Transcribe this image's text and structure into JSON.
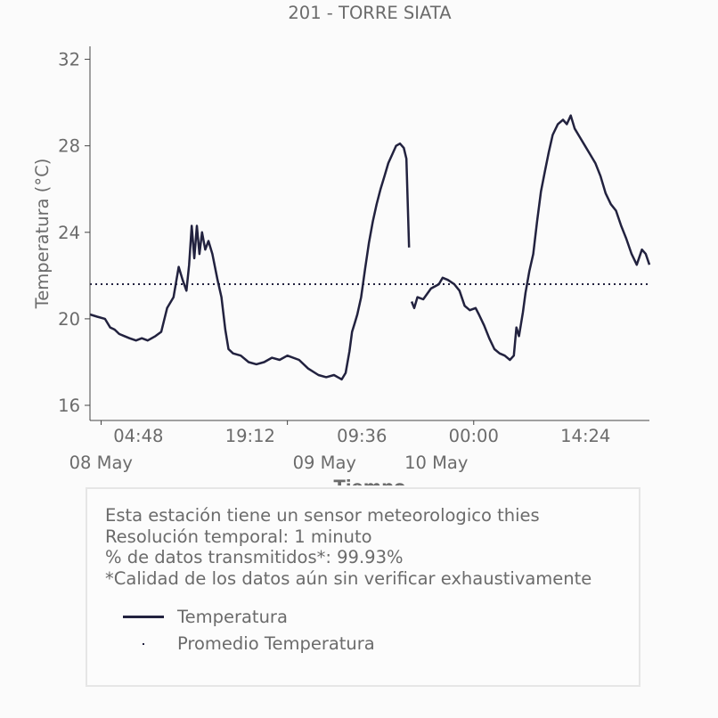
{
  "chart_data": {
    "type": "line",
    "title": "201 - TORRE SIATA",
    "xlabel": "Tiempo",
    "ylabel": "Temperatura (°C)",
    "ylim": [
      15.3,
      32.6
    ],
    "y_ticks": [
      16,
      20,
      24,
      28,
      32
    ],
    "x_range": [
      "2020-05-07T22:34",
      "2020-05-10T22:38"
    ],
    "x_ticks": [
      {
        "time": "2020-05-08T04:48",
        "label": "04:48",
        "date_label": "08 May"
      },
      {
        "time": "2020-05-08T19:12",
        "label": "19:12",
        "date_label": ""
      },
      {
        "time": "2020-05-09T09:36",
        "label": "09:36",
        "date_label": "09 May"
      },
      {
        "time": "2020-05-10T00:00",
        "label": "00:00",
        "date_label": "10 May"
      },
      {
        "time": "2020-05-10T14:24",
        "label": "14:24",
        "date_label": ""
      }
    ],
    "x_minor_ticks": [
      "2020-05-08T00:00",
      "2020-05-09T00:00",
      "2020-05-10T00:00"
    ],
    "grid": false,
    "series": [
      {
        "name": "Temperatura",
        "color": "#22223f",
        "style": "solid",
        "segments": [
          [
            [
              "2020-05-07T22:34",
              20.2
            ],
            [
              "2020-05-07T23:30",
              20.1
            ],
            [
              "2020-05-08T00:30",
              20.0
            ],
            [
              "2020-05-08T01:10",
              19.6
            ],
            [
              "2020-05-08T01:45",
              19.5
            ],
            [
              "2020-05-08T02:20",
              19.3
            ],
            [
              "2020-05-08T03:00",
              19.2
            ],
            [
              "2020-05-08T03:40",
              19.1
            ],
            [
              "2020-05-08T04:30",
              19.0
            ],
            [
              "2020-05-08T05:15",
              19.1
            ],
            [
              "2020-05-08T06:00",
              19.0
            ],
            [
              "2020-05-08T07:00",
              19.2
            ],
            [
              "2020-05-08T07:45",
              19.4
            ],
            [
              "2020-05-08T08:30",
              20.5
            ],
            [
              "2020-05-08T09:20",
              21.0
            ],
            [
              "2020-05-08T10:00",
              22.4
            ],
            [
              "2020-05-08T10:30",
              21.8
            ],
            [
              "2020-05-08T11:00",
              21.3
            ],
            [
              "2020-05-08T11:20",
              22.5
            ],
            [
              "2020-05-08T11:40",
              24.3
            ],
            [
              "2020-05-08T12:00",
              22.8
            ],
            [
              "2020-05-08T12:20",
              24.3
            ],
            [
              "2020-05-08T12:40",
              23.0
            ],
            [
              "2020-05-08T13:00",
              24.0
            ],
            [
              "2020-05-08T13:25",
              23.2
            ],
            [
              "2020-05-08T13:50",
              23.6
            ],
            [
              "2020-05-08T14:20",
              23.0
            ],
            [
              "2020-05-08T15:00",
              21.8
            ],
            [
              "2020-05-08T15:30",
              21.0
            ],
            [
              "2020-05-08T16:00",
              19.5
            ],
            [
              "2020-05-08T16:25",
              18.6
            ],
            [
              "2020-05-08T17:00",
              18.4
            ],
            [
              "2020-05-08T18:00",
              18.3
            ],
            [
              "2020-05-08T19:00",
              18.0
            ],
            [
              "2020-05-08T20:00",
              17.9
            ],
            [
              "2020-05-08T21:00",
              18.0
            ],
            [
              "2020-05-08T22:00",
              18.2
            ],
            [
              "2020-05-08T23:00",
              18.1
            ],
            [
              "2020-05-09T00:00",
              18.3
            ],
            [
              "2020-05-09T01:30",
              18.1
            ],
            [
              "2020-05-09T02:40",
              17.7
            ],
            [
              "2020-05-09T04:00",
              17.4
            ],
            [
              "2020-05-09T05:00",
              17.3
            ],
            [
              "2020-05-09T06:00",
              17.4
            ],
            [
              "2020-05-09T07:00",
              17.2
            ],
            [
              "2020-05-09T07:30",
              17.5
            ],
            [
              "2020-05-09T08:00",
              18.5
            ],
            [
              "2020-05-09T08:20",
              19.4
            ],
            [
              "2020-05-09T08:40",
              19.8
            ],
            [
              "2020-05-09T09:00",
              20.2
            ],
            [
              "2020-05-09T09:30",
              21.0
            ],
            [
              "2020-05-09T10:00",
              22.3
            ],
            [
              "2020-05-09T10:30",
              23.5
            ],
            [
              "2020-05-09T11:00",
              24.5
            ],
            [
              "2020-05-09T11:30",
              25.3
            ],
            [
              "2020-05-09T12:00",
              26.0
            ],
            [
              "2020-05-09T12:30",
              26.6
            ],
            [
              "2020-05-09T13:00",
              27.2
            ],
            [
              "2020-05-09T13:30",
              27.6
            ],
            [
              "2020-05-09T14:00",
              28.0
            ],
            [
              "2020-05-09T14:30",
              28.1
            ],
            [
              "2020-05-09T15:00",
              27.9
            ],
            [
              "2020-05-09T15:20",
              27.4
            ],
            [
              "2020-05-09T15:40",
              23.3
            ]
          ],
          [
            [
              "2020-05-09T16:00",
              20.8
            ],
            [
              "2020-05-09T16:20",
              20.5
            ],
            [
              "2020-05-09T16:45",
              21.0
            ],
            [
              "2020-05-09T17:30",
              20.9
            ],
            [
              "2020-05-09T18:30",
              21.4
            ],
            [
              "2020-05-09T19:30",
              21.6
            ],
            [
              "2020-05-09T20:00",
              21.9
            ],
            [
              "2020-05-09T20:40",
              21.8
            ],
            [
              "2020-05-09T21:30",
              21.6
            ],
            [
              "2020-05-09T22:10",
              21.3
            ],
            [
              "2020-05-09T22:50",
              20.6
            ],
            [
              "2020-05-09T23:30",
              20.4
            ],
            [
              "2020-05-10T00:15",
              20.5
            ],
            [
              "2020-05-10T00:40",
              20.2
            ],
            [
              "2020-05-10T01:20",
              19.7
            ],
            [
              "2020-05-10T02:00",
              19.1
            ],
            [
              "2020-05-10T02:40",
              18.6
            ],
            [
              "2020-05-10T03:20",
              18.4
            ],
            [
              "2020-05-10T04:00",
              18.3
            ],
            [
              "2020-05-10T04:40",
              18.1
            ],
            [
              "2020-05-10T05:10",
              18.3
            ],
            [
              "2020-05-10T05:30",
              19.6
            ],
            [
              "2020-05-10T05:50",
              19.2
            ],
            [
              "2020-05-10T06:20",
              20.3
            ],
            [
              "2020-05-10T06:40",
              21.2
            ],
            [
              "2020-05-10T07:10",
              22.2
            ],
            [
              "2020-05-10T07:40",
              23.0
            ],
            [
              "2020-05-10T08:10",
              24.5
            ],
            [
              "2020-05-10T08:40",
              25.9
            ],
            [
              "2020-05-10T09:10",
              26.8
            ],
            [
              "2020-05-10T09:40",
              27.7
            ],
            [
              "2020-05-10T10:10",
              28.5
            ],
            [
              "2020-05-10T10:50",
              29.0
            ],
            [
              "2020-05-10T11:30",
              29.2
            ],
            [
              "2020-05-10T12:00",
              29.0
            ],
            [
              "2020-05-10T12:30",
              29.4
            ],
            [
              "2020-05-10T13:00",
              28.8
            ],
            [
              "2020-05-10T13:40",
              28.4
            ],
            [
              "2020-05-10T14:20",
              28.0
            ],
            [
              "2020-05-10T15:00",
              27.6
            ],
            [
              "2020-05-10T15:40",
              27.2
            ],
            [
              "2020-05-10T16:20",
              26.6
            ],
            [
              "2020-05-10T17:00",
              25.8
            ],
            [
              "2020-05-10T17:40",
              25.3
            ],
            [
              "2020-05-10T18:20",
              25.0
            ],
            [
              "2020-05-10T19:00",
              24.3
            ],
            [
              "2020-05-10T19:40",
              23.7
            ],
            [
              "2020-05-10T20:20",
              23.0
            ],
            [
              "2020-05-10T21:00",
              22.5
            ],
            [
              "2020-05-10T21:40",
              23.2
            ],
            [
              "2020-05-10T22:10",
              23.0
            ],
            [
              "2020-05-10T22:38",
              22.5
            ]
          ]
        ]
      },
      {
        "name": "Promedio Temperatura",
        "color": "#22223f",
        "style": "dotted",
        "value": 21.6
      }
    ]
  },
  "info": {
    "line1": "Esta estación tiene un sensor meteorologico thies",
    "line2": "Resolución temporal: 1 minuto",
    "line3": "% de datos transmitidos*: 99.93%",
    "line4": "*Calidad de los datos aún sin verificar exhaustivamente"
  },
  "legend": {
    "item1": "Temperatura",
    "item2": "Promedio Temperatura"
  }
}
